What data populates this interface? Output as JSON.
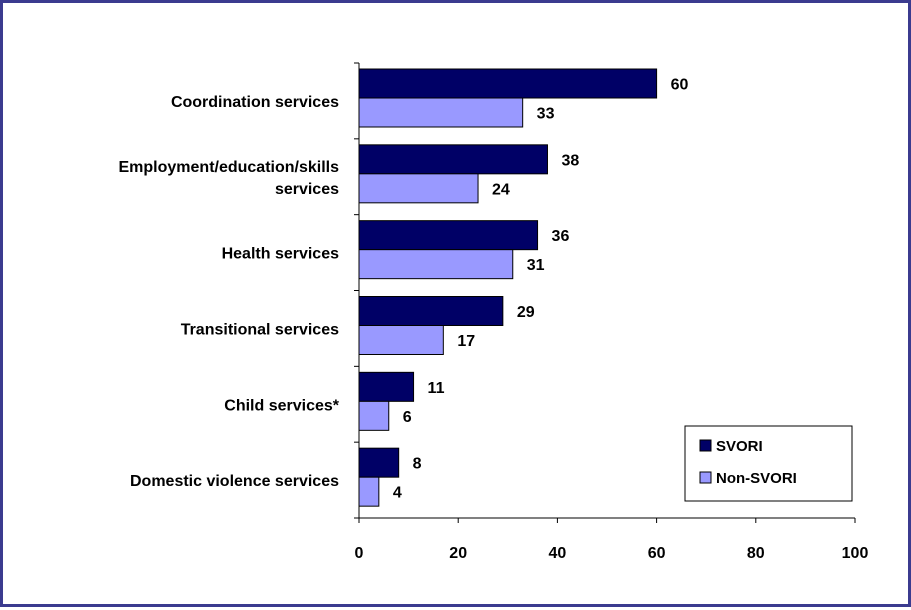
{
  "chart_data": {
    "type": "bar",
    "orientation": "horizontal",
    "categories": [
      [
        "Coordination services"
      ],
      [
        "Employment/education/skills",
        "services"
      ],
      [
        "Health services"
      ],
      [
        "Transitional services"
      ],
      [
        "Child services*"
      ],
      [
        "Domestic violence services"
      ]
    ],
    "series": [
      {
        "name": "SVORI",
        "color": "#000066",
        "values": [
          60,
          38,
          36,
          29,
          11,
          8
        ]
      },
      {
        "name": "Non-SVORI",
        "color": "#9999ff",
        "values": [
          33,
          24,
          31,
          17,
          6,
          4
        ]
      }
    ],
    "xlim": [
      0,
      100
    ],
    "xticks": [
      0,
      20,
      40,
      60,
      80,
      100
    ],
    "title": "",
    "xlabel": "",
    "ylabel": "",
    "legend": "bottom-right",
    "grid": false
  }
}
